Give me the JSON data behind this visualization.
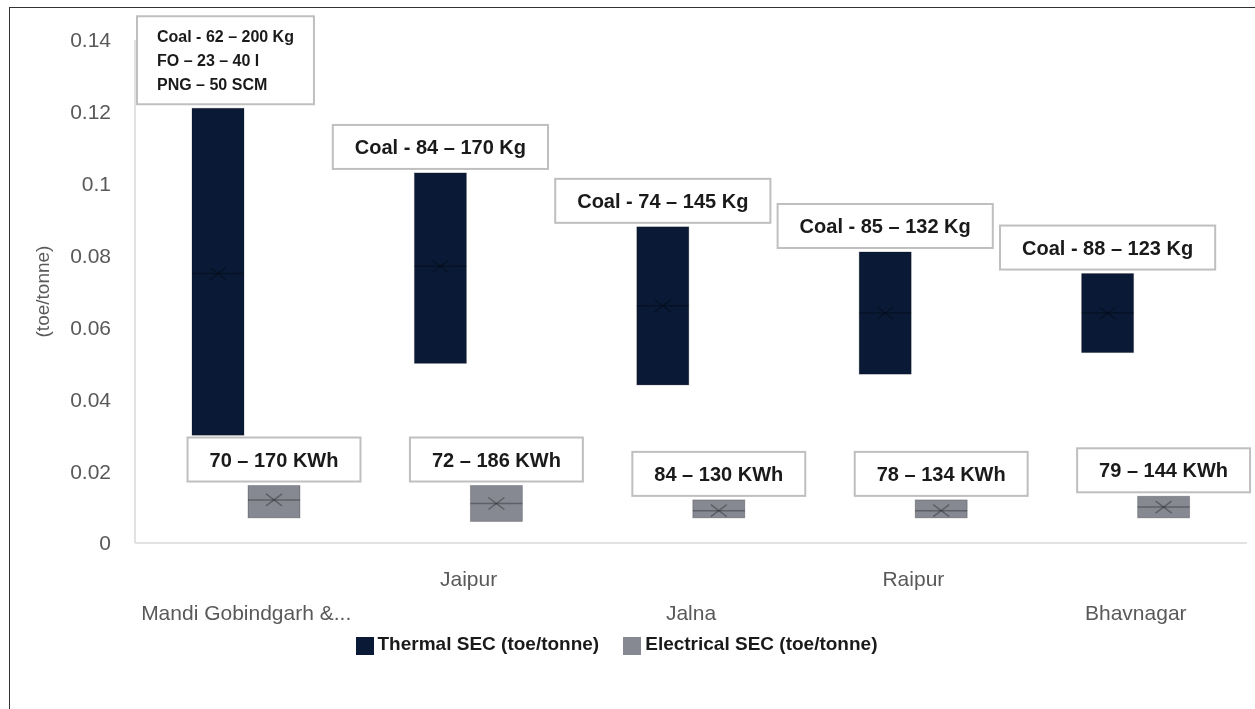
{
  "chart_data": {
    "type": "box",
    "ylabel": "(toe/tonne)",
    "categories": [
      "Mandi Gobindgarh &...",
      "Jaipur",
      "Jalna",
      "Raipur",
      "Bhavnagar"
    ],
    "series": [
      {
        "name": "Thermal SEC (toe/tonne)",
        "color": "#0a1935",
        "boxes": [
          {
            "low": 0.03,
            "q1": 0.03,
            "median": 0.075,
            "q3": 0.121,
            "high": 0.121,
            "mean": 0.075
          },
          {
            "low": 0.05,
            "q1": 0.05,
            "median": 0.077,
            "q3": 0.103,
            "high": 0.103,
            "mean": 0.077
          },
          {
            "low": 0.044,
            "q1": 0.044,
            "median": 0.066,
            "q3": 0.088,
            "high": 0.088,
            "mean": 0.066
          },
          {
            "low": 0.047,
            "q1": 0.047,
            "median": 0.064,
            "q3": 0.081,
            "high": 0.081,
            "mean": 0.064
          },
          {
            "low": 0.053,
            "q1": 0.053,
            "median": 0.064,
            "q3": 0.075,
            "high": 0.075,
            "mean": 0.064
          }
        ]
      },
      {
        "name": "Electrical SEC (toe/tonne)",
        "color": "#868892",
        "boxes": [
          {
            "low": 0.007,
            "q1": 0.007,
            "median": 0.012,
            "q3": 0.016,
            "high": 0.016,
            "mean": 0.012
          },
          {
            "low": 0.006,
            "q1": 0.006,
            "median": 0.011,
            "q3": 0.016,
            "high": 0.016,
            "mean": 0.011
          },
          {
            "low": 0.007,
            "q1": 0.007,
            "median": 0.009,
            "q3": 0.012,
            "high": 0.012,
            "mean": 0.009
          },
          {
            "low": 0.007,
            "q1": 0.007,
            "median": 0.009,
            "q3": 0.012,
            "high": 0.012,
            "mean": 0.009
          },
          {
            "low": 0.007,
            "q1": 0.007,
            "median": 0.01,
            "q3": 0.013,
            "high": 0.013,
            "mean": 0.01
          }
        ]
      }
    ],
    "ylim": [
      0,
      0.14
    ],
    "yticks": [
      0,
      0.02,
      0.04,
      0.06,
      0.08,
      0.1,
      0.12,
      0.14
    ],
    "legend": "bottom",
    "annotations": [
      {
        "text": "Coal - 62 – 200 Kg\nFO – 23 – 40 l\nPNG – 50 SCM",
        "x": "Mandi Gobindgarh &...",
        "y": 0.121
      },
      {
        "text": "Coal - 84 – 170 Kg",
        "x": "Jaipur",
        "y": 0.103
      },
      {
        "text": "Coal - 74 – 145 Kg",
        "x": "Jalna",
        "y": 0.088
      },
      {
        "text": "Coal - 85 – 132 Kg",
        "x": "Raipur",
        "y": 0.081
      },
      {
        "text": "Coal - 88 – 123 Kg",
        "x": "Bhavnagar",
        "y": 0.075
      },
      {
        "text": "70 – 170 KWh",
        "x": "Mandi Gobindgarh &...",
        "y": 0.016
      },
      {
        "text": "72 – 186 KWh",
        "x": "Jaipur",
        "y": 0.016
      },
      {
        "text": "84 – 130 KWh",
        "x": "Jalna",
        "y": 0.012
      },
      {
        "text": "78 – 134 KWh",
        "x": "Raipur",
        "y": 0.012
      },
      {
        "text": "79 – 144 KWh",
        "x": "Bhavnagar",
        "y": 0.013
      }
    ]
  }
}
